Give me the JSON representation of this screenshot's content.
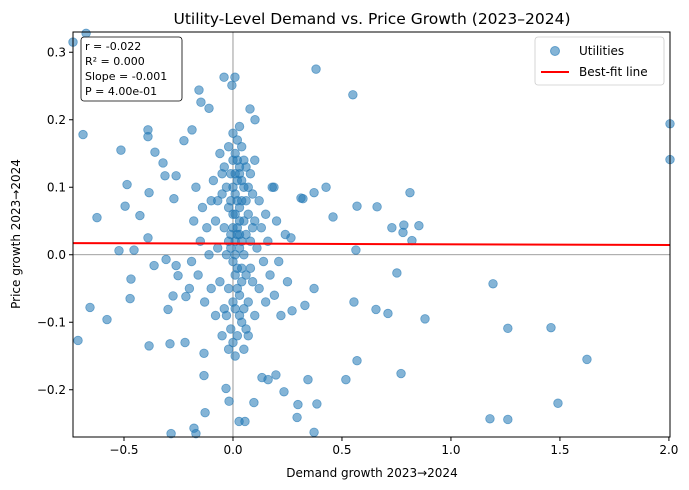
{
  "chart_data": {
    "type": "scatter",
    "title": "Utility-Level Demand vs. Price Growth (2023–2024)",
    "xlabel": "Demand growth 2023→2024",
    "ylabel": "Price growth 2023→2024",
    "xlim": [
      -0.734,
      2.005
    ],
    "ylim": [
      -0.27,
      0.33
    ],
    "xticks": [
      -0.5,
      0.0,
      0.5,
      1.0,
      1.5,
      2.0
    ],
    "xtick_labels": [
      "−0.5",
      "0.0",
      "0.5",
      "1.0",
      "1.5",
      "2.0"
    ],
    "yticks": [
      0.3,
      0.2,
      0.1,
      0.0,
      -0.1,
      -0.2
    ],
    "ytick_labels": [
      "0.3",
      "0.2",
      "0.1",
      "0.0",
      "−0.1",
      "−0.2"
    ],
    "grid": false,
    "reference_lines": {
      "x": 0,
      "y": 0
    },
    "legend": {
      "placement": "top-right",
      "entries": [
        "Utilities",
        "Best-fit line"
      ]
    },
    "stats": [
      "r = -0.022",
      "R² = 0.000",
      "Slope = -0.001",
      "P = 4.00e-01"
    ],
    "fit": {
      "slope": -0.001,
      "intercept": 0.0165,
      "color": "#ff0000"
    },
    "series": [
      {
        "name": "Utilities",
        "color": "#1f77b4",
        "alpha": 0.55,
        "points": [
          [
            -0.734,
            0.315
          ],
          [
            -0.674,
            0.328
          ],
          [
            -0.688,
            0.178
          ],
          [
            -0.711,
            -0.127
          ],
          [
            -0.656,
            -0.078
          ],
          [
            -0.624,
            0.055
          ],
          [
            -0.578,
            -0.096
          ],
          [
            -0.514,
            0.155
          ],
          [
            -0.486,
            0.104
          ],
          [
            -0.495,
            0.072
          ],
          [
            -0.523,
            0.006
          ],
          [
            -0.468,
            -0.036
          ],
          [
            -0.472,
            -0.065
          ],
          [
            -0.427,
            0.058
          ],
          [
            -0.454,
            0.007
          ],
          [
            -0.39,
            0.185
          ],
          [
            -0.39,
            0.175
          ],
          [
            -0.385,
            0.092
          ],
          [
            -0.39,
            0.025
          ],
          [
            -0.385,
            -0.135
          ],
          [
            -0.358,
            0.152
          ],
          [
            -0.362,
            -0.016
          ],
          [
            -0.321,
            0.136
          ],
          [
            -0.312,
            0.117
          ],
          [
            -0.307,
            -0.007
          ],
          [
            -0.298,
            -0.081
          ],
          [
            -0.289,
            -0.132
          ],
          [
            -0.284,
            -0.265
          ],
          [
            -0.271,
            0.083
          ],
          [
            -0.261,
            0.117
          ],
          [
            -0.261,
            -0.016
          ],
          [
            -0.275,
            -0.061
          ],
          [
            -0.252,
            -0.031
          ],
          [
            -0.225,
            0.169
          ],
          [
            -0.22,
            -0.13
          ],
          [
            -0.216,
            -0.062
          ],
          [
            -0.188,
            0.185
          ],
          [
            -0.179,
            -0.257
          ],
          [
            -0.17,
            -0.265
          ],
          [
            -0.156,
            0.244
          ],
          [
            -0.147,
            0.226
          ],
          [
            -0.133,
            -0.146
          ],
          [
            -0.133,
            -0.179
          ],
          [
            -0.128,
            -0.234
          ],
          [
            -0.11,
            0.217
          ],
          [
            -0.041,
            0.263
          ],
          [
            0.009,
            0.263
          ],
          [
            -0.005,
            0.251
          ],
          [
            -0.032,
            -0.198
          ],
          [
            -0.018,
            -0.217
          ],
          [
            0.028,
            -0.247
          ],
          [
            0.055,
            -0.247
          ],
          [
            0.078,
            0.216
          ],
          [
            0.096,
            -0.219
          ],
          [
            0.101,
            0.2
          ],
          [
            0.133,
            -0.182
          ],
          [
            0.161,
            -0.185
          ],
          [
            0.197,
            -0.178
          ],
          [
            0.234,
            -0.203
          ],
          [
            0.188,
            0.1
          ],
          [
            0.294,
            -0.241
          ],
          [
            0.298,
            -0.222
          ],
          [
            0.372,
            -0.263
          ],
          [
            0.385,
            -0.221
          ],
          [
            0.381,
            0.275
          ],
          [
            0.266,
            0.025
          ],
          [
            0.321,
            0.083
          ],
          [
            0.312,
            0.084
          ],
          [
            0.372,
            0.092
          ],
          [
            0.427,
            0.1
          ],
          [
            0.459,
            0.056
          ],
          [
            0.518,
            -0.185
          ],
          [
            0.344,
            -0.185
          ],
          [
            0.33,
            -0.075
          ],
          [
            0.372,
            -0.05
          ],
          [
            0.271,
            -0.083
          ],
          [
            0.55,
            0.237
          ],
          [
            0.569,
            0.072
          ],
          [
            0.564,
            0.007
          ],
          [
            0.555,
            -0.07
          ],
          [
            0.569,
            -0.157
          ],
          [
            0.661,
            0.071
          ],
          [
            0.656,
            -0.081
          ],
          [
            0.711,
            -0.087
          ],
          [
            0.729,
            0.04
          ],
          [
            0.784,
            0.044
          ],
          [
            0.78,
            0.033
          ],
          [
            0.771,
            -0.176
          ],
          [
            0.752,
            -0.027
          ],
          [
            0.812,
            0.092
          ],
          [
            0.821,
            0.021
          ],
          [
            0.853,
            0.043
          ],
          [
            0.881,
            -0.095
          ],
          [
            1.193,
            -0.043
          ],
          [
            1.179,
            -0.243
          ],
          [
            1.261,
            -0.244
          ],
          [
            1.261,
            -0.109
          ],
          [
            1.459,
            -0.108
          ],
          [
            1.491,
            -0.22
          ],
          [
            1.624,
            -0.155
          ],
          [
            2.005,
            0.194
          ],
          [
            2.005,
            0.141
          ],
          [
            0.01,
            0.02
          ],
          [
            0.02,
            0.04
          ],
          [
            0.03,
            0.01
          ],
          [
            0.0,
            0.06
          ],
          [
            0.04,
            0.08
          ],
          [
            -0.01,
            0.03
          ],
          [
            0.05,
            0.0
          ],
          [
            0.02,
            -0.02
          ],
          [
            0.03,
            0.05
          ],
          [
            0.01,
            0.09
          ],
          [
            -0.02,
            0.07
          ],
          [
            0.06,
            0.03
          ],
          [
            0.04,
            -0.04
          ],
          [
            0.0,
            -0.01
          ],
          [
            0.02,
            0.11
          ],
          [
            0.03,
            0.13
          ],
          [
            0.01,
            0.15
          ],
          [
            -0.01,
            0.12
          ],
          [
            0.05,
            0.1
          ],
          [
            0.07,
            0.06
          ],
          [
            0.08,
            0.02
          ],
          [
            0.06,
            -0.03
          ],
          [
            0.03,
            -0.06
          ],
          [
            0.01,
            -0.08
          ],
          [
            -0.02,
            -0.05
          ],
          [
            -0.03,
            0.0
          ],
          [
            -0.04,
            0.04
          ],
          [
            -0.05,
            0.09
          ],
          [
            -0.03,
            0.1
          ],
          [
            0.0,
            0.14
          ],
          [
            0.02,
            0.17
          ],
          [
            0.04,
            0.16
          ],
          [
            0.06,
            0.13
          ],
          [
            0.09,
            0.09
          ],
          [
            0.1,
            0.05
          ],
          [
            0.11,
            0.01
          ],
          [
            0.09,
            -0.04
          ],
          [
            0.07,
            -0.07
          ],
          [
            0.04,
            -0.1
          ],
          [
            0.02,
            -0.12
          ],
          [
            -0.01,
            -0.11
          ],
          [
            -0.04,
            -0.08
          ],
          [
            -0.06,
            -0.04
          ],
          [
            -0.07,
            0.01
          ],
          [
            -0.08,
            0.05
          ],
          [
            -0.07,
            0.08
          ],
          [
            -0.05,
            0.12
          ],
          [
            -0.02,
            0.16
          ],
          [
            0.0,
            0.18
          ],
          [
            0.03,
            0.19
          ],
          [
            0.05,
            0.14
          ],
          [
            0.08,
            0.12
          ],
          [
            0.12,
            0.08
          ],
          [
            0.13,
            0.04
          ],
          [
            0.14,
            -0.01
          ],
          [
            0.12,
            -0.05
          ],
          [
            0.1,
            -0.09
          ],
          [
            0.07,
            -0.12
          ],
          [
            0.05,
            -0.14
          ],
          [
            0.01,
            -0.15
          ],
          [
            -0.02,
            -0.14
          ],
          [
            -0.05,
            -0.12
          ],
          [
            -0.08,
            -0.09
          ],
          [
            -0.1,
            -0.05
          ],
          [
            -0.11,
            0.0
          ],
          [
            -0.12,
            0.04
          ],
          [
            -0.1,
            0.08
          ],
          [
            -0.09,
            0.11
          ],
          [
            -0.06,
            0.15
          ],
          [
            0.15,
            0.06
          ],
          [
            0.16,
            0.02
          ],
          [
            0.17,
            -0.03
          ],
          [
            0.15,
            -0.07
          ],
          [
            0.18,
            0.1
          ],
          [
            0.2,
            0.05
          ],
          [
            0.21,
            -0.01
          ],
          [
            0.19,
            -0.06
          ],
          [
            0.22,
            -0.09
          ],
          [
            0.24,
            0.03
          ],
          [
            0.25,
            -0.04
          ],
          [
            -0.14,
            0.07
          ],
          [
            -0.15,
            0.02
          ],
          [
            -0.16,
            -0.03
          ],
          [
            -0.13,
            -0.07
          ],
          [
            -0.17,
            0.1
          ],
          [
            -0.18,
            0.05
          ],
          [
            -0.19,
            -0.01
          ],
          [
            -0.2,
            -0.05
          ],
          [
            0.01,
            0.0
          ],
          [
            0.02,
            0.03
          ],
          [
            0.03,
            0.07
          ],
          [
            0.04,
            0.02
          ],
          [
            0.0,
            0.04
          ],
          [
            0.01,
            0.06
          ],
          [
            0.02,
            0.08
          ],
          [
            0.03,
            0.03
          ],
          [
            0.01,
            -0.03
          ],
          [
            0.02,
            -0.05
          ],
          [
            0.0,
            -0.07
          ],
          [
            0.04,
            -0.02
          ],
          [
            0.05,
            0.05
          ],
          [
            0.06,
            0.08
          ],
          [
            -0.01,
            0.01
          ],
          [
            -0.02,
            0.02
          ],
          [
            0.03,
            0.12
          ],
          [
            0.02,
            0.14
          ],
          [
            0.04,
            0.11
          ],
          [
            0.0,
            0.1
          ],
          [
            0.01,
            0.12
          ],
          [
            -0.01,
            0.08
          ],
          [
            0.05,
            -0.08
          ],
          [
            0.03,
            -0.09
          ],
          [
            0.0,
            -0.13
          ],
          [
            0.06,
            -0.11
          ],
          [
            -0.03,
            -0.09
          ],
          [
            0.08,
            -0.02
          ],
          [
            0.09,
            0.04
          ],
          [
            0.07,
            0.1
          ],
          [
            -0.04,
            0.13
          ],
          [
            0.1,
            0.14
          ]
        ]
      }
    ]
  }
}
